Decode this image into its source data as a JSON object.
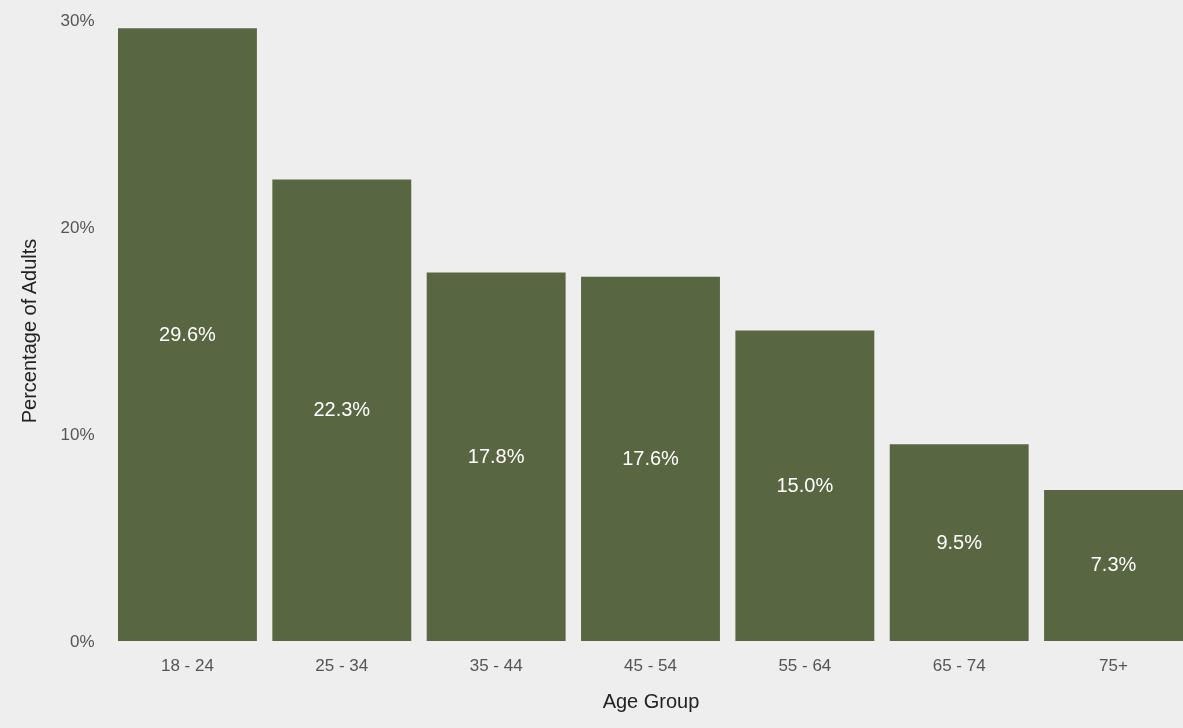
{
  "chart_data": {
    "type": "bar",
    "xlabel": "Age Group",
    "ylabel": "Percentage of Adults",
    "categories": [
      "18 - 24",
      "25 - 34",
      "35 - 44",
      "45 - 54",
      "55 - 64",
      "65 - 74",
      "75+"
    ],
    "values": [
      29.6,
      22.3,
      17.8,
      17.6,
      15.0,
      9.5,
      7.3
    ],
    "value_labels": [
      "29.6%",
      "22.3%",
      "17.8%",
      "17.6%",
      "15.0%",
      "9.5%",
      "7.3%"
    ],
    "color": "#586641",
    "ylim": [
      0,
      30
    ],
    "yticks": [
      {
        "value": 0,
        "label": "0%"
      },
      {
        "value": 10,
        "label": "10%"
      },
      {
        "value": 20,
        "label": "20%"
      },
      {
        "value": 30,
        "label": "30%"
      }
    ]
  }
}
